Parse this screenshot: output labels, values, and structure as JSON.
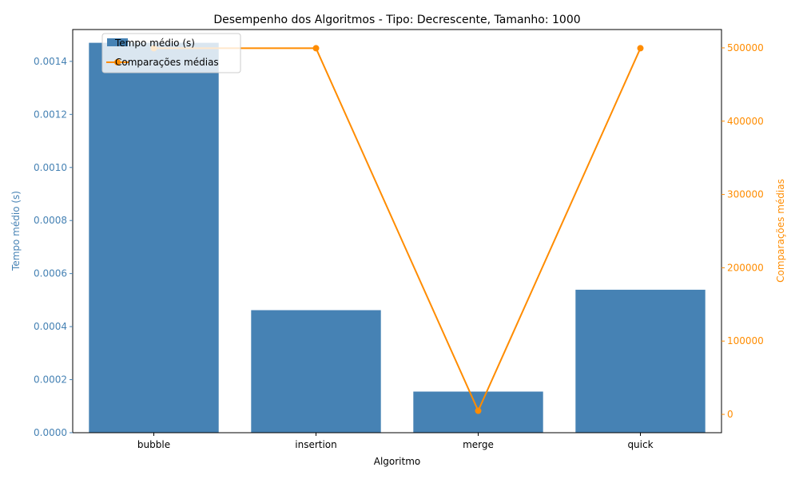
{
  "chart_data": {
    "type": "bar+line",
    "title": "Desempenho dos Algoritmos - Tipo: Decrescente, Tamanho: 1000",
    "xlabel": "Algoritmo",
    "categories": [
      "bubble",
      "insertion",
      "merge",
      "quick"
    ],
    "left_axis": {
      "label": "Tempo médio (s)",
      "ylim": [
        0,
        0.00152
      ],
      "ticks": [
        "0.0000",
        "0.0002",
        "0.0004",
        "0.0006",
        "0.0008",
        "0.0010",
        "0.0012",
        "0.0014"
      ],
      "color": "#4682b4"
    },
    "right_axis": {
      "label": "Comparações médias",
      "ylim": [
        -25000,
        525000
      ],
      "ticks": [
        "0",
        "100000",
        "200000",
        "300000",
        "400000",
        "500000"
      ],
      "color": "#ff8c00"
    },
    "series": [
      {
        "name": "Tempo médio (s)",
        "type": "bar",
        "axis": "left",
        "color": "#4682b4",
        "values": [
          0.00147,
          0.000462,
          0.000155,
          0.000539
        ]
      },
      {
        "name": "Comparações médias",
        "type": "line",
        "axis": "right",
        "color": "#ff8c00",
        "values": [
          499500,
          499500,
          4932,
          499500
        ]
      }
    ],
    "legend_position": "upper-left",
    "grid": false
  }
}
